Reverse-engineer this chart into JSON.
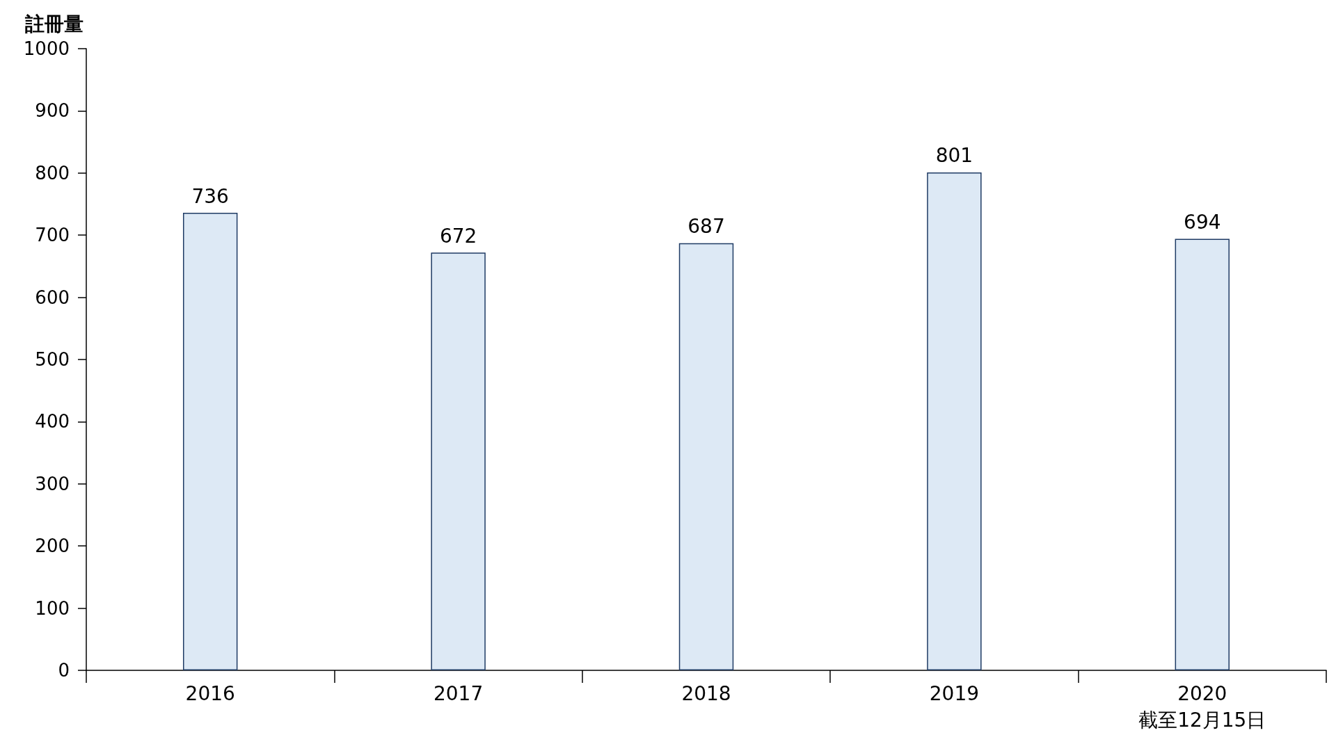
{
  "chart_data": {
    "type": "bar",
    "ylabel": "註冊量",
    "categories": [
      "2016",
      "2017",
      "2018",
      "2019",
      "2020\n截至12月15日"
    ],
    "values": [
      736,
      672,
      687,
      801,
      694
    ],
    "color": "#dde9f5",
    "ylim": [
      0,
      1000
    ],
    "yticks": [
      0,
      100,
      200,
      300,
      400,
      500,
      600,
      700,
      800,
      900,
      1000
    ],
    "data_labels": true,
    "grid": false
  }
}
